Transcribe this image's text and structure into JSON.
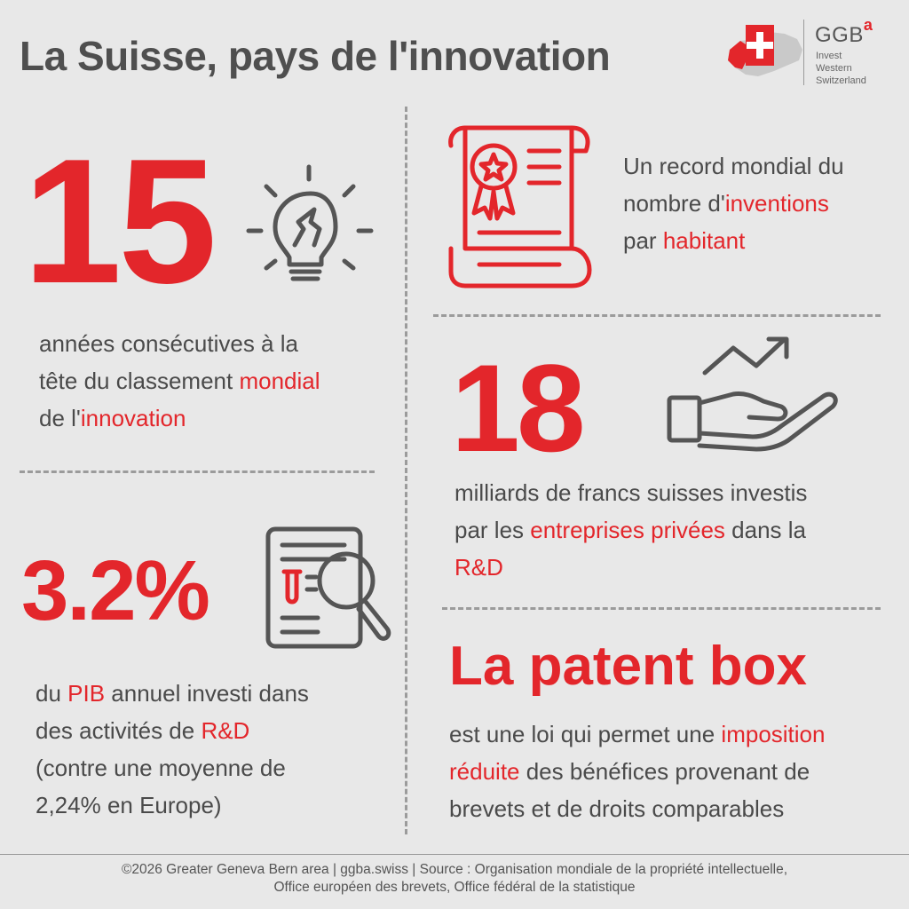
{
  "title": "La Suisse, pays de l'innovation",
  "logo": {
    "brand": "GGB",
    "brand_sup": "a",
    "sub": [
      "Invest",
      "Western",
      "Switzerland"
    ]
  },
  "block1": {
    "number": "15",
    "line1": "années consécutives à la",
    "line2_pre": "tête du classement ",
    "line2_hl": "mondial",
    "line3_pre": "de l'",
    "line3_hl": "innovation"
  },
  "block2": {
    "line1": "Un record mondial du",
    "line2_pre": "nombre d'",
    "line2_hl": "inventions",
    "line3_pre": "par ",
    "line3_hl": "habitant"
  },
  "block3": {
    "number": "18",
    "line1": "milliards de francs suisses investis",
    "line2_pre": "par les ",
    "line2_hl": "entreprises privées",
    "line2_post": " dans la",
    "line3_hl": "R&D"
  },
  "block4": {
    "number": "3.2%",
    "line1_pre": "du ",
    "line1_hl": "PIB",
    "line1_post": " annuel investi dans",
    "line2_pre": "des activités de ",
    "line2_hl": "R&D",
    "line3": "(contre une moyenne de",
    "line4": "2,24% en Europe)"
  },
  "block5": {
    "heading": "La patent box",
    "line1_pre": "est une loi qui permet une ",
    "line1_hl": "imposition",
    "line2_hl": "réduite",
    "line2_post": " des bénéfices provenant de",
    "line3": "brevets et de droits comparables"
  },
  "footer": {
    "line1": "©2026 Greater Geneva Bern area | ggba.swiss | Source : Organisation mondiale de la propriété intellectuelle,",
    "line2": "Office européen des brevets, Office fédéral de la statistique"
  },
  "icons": [
    "lightbulb-icon",
    "certificate-icon",
    "hand-growth-icon",
    "document-search-icon",
    "swiss-map-logo-icon"
  ],
  "colors": {
    "accent": "#e3262b",
    "text": "#4a4a4a",
    "background": "#e8e8e8"
  }
}
